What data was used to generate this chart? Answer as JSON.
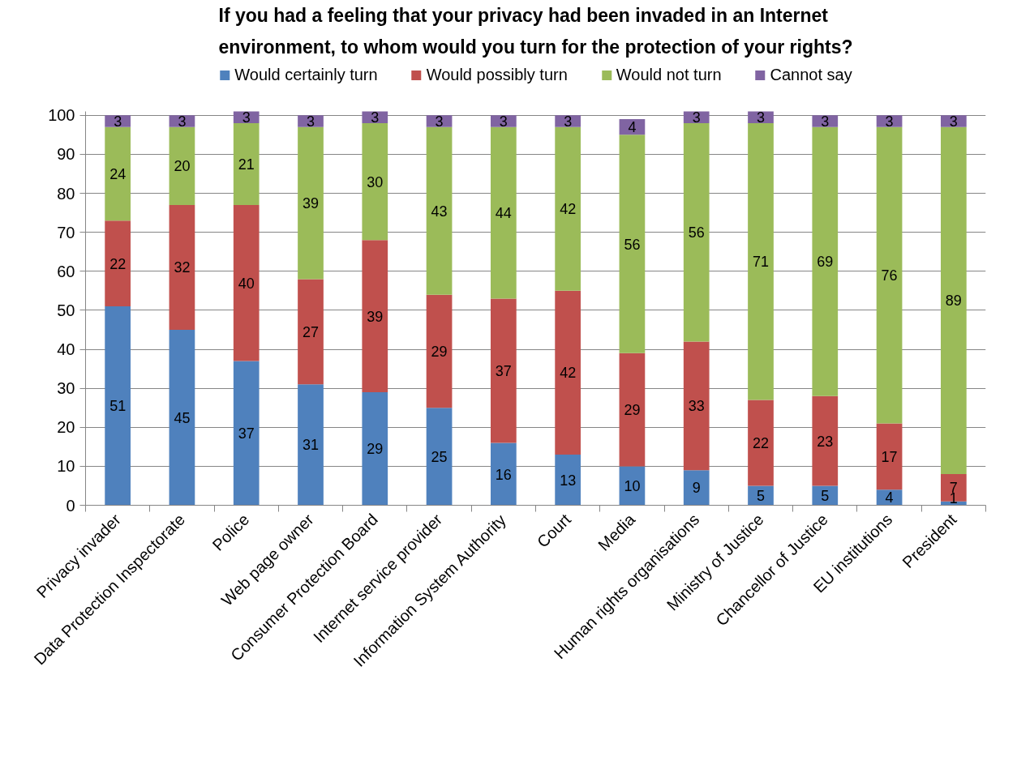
{
  "chart_data": {
    "type": "bar",
    "title": "If you had a feeling that your privacy had been invaded in an Internet environment, to whom would you turn for the protection of your rights?",
    "categories": [
      "Privacy invader",
      "Data Protection Inspectorate",
      "Police",
      "Web page owner",
      "Consumer Protection Board",
      "Internet service provider",
      "Information System Authority",
      "Court",
      "Media",
      "Human rights organisations",
      "Ministry of Justice",
      "Chancellor of Justice",
      "EU institutions",
      "President"
    ],
    "series": [
      {
        "name": "Would certainly turn",
        "color": "#4f81bd",
        "values": [
          51,
          45,
          37,
          31,
          29,
          25,
          16,
          13,
          10,
          9,
          5,
          5,
          4,
          1
        ]
      },
      {
        "name": "Would possibly turn",
        "color": "#c0504d",
        "values": [
          22,
          32,
          40,
          27,
          39,
          29,
          37,
          42,
          29,
          33,
          22,
          23,
          17,
          7
        ]
      },
      {
        "name": "Would not turn",
        "color": "#9bbb59",
        "values": [
          24,
          20,
          21,
          39,
          30,
          43,
          44,
          42,
          56,
          56,
          71,
          69,
          76,
          89
        ]
      },
      {
        "name": "Cannot say",
        "color": "#8064a2",
        "values": [
          3,
          3,
          3,
          3,
          3,
          3,
          3,
          3,
          4,
          3,
          3,
          3,
          3,
          3
        ]
      }
    ],
    "stacked": true,
    "ylim": [
      0,
      101
    ],
    "yticks": [
      0,
      10,
      20,
      30,
      40,
      50,
      60,
      70,
      80,
      90,
      100
    ],
    "grid": "y",
    "legend": "top",
    "data_labels": true
  }
}
